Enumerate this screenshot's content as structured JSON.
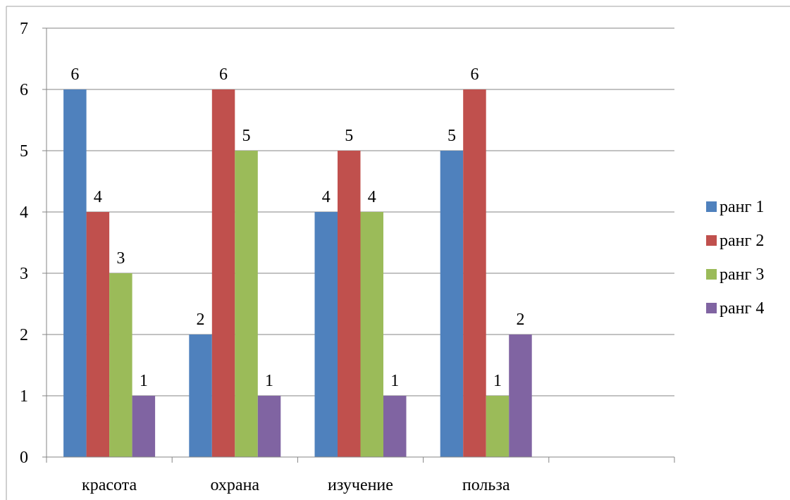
{
  "chart_data": {
    "type": "bar",
    "title": "",
    "xlabel": "",
    "ylabel": "",
    "categories": [
      "красота",
      "охрана",
      "изучение",
      "польза"
    ],
    "series": [
      {
        "name": "ранг 1",
        "values": [
          6,
          2,
          4,
          5
        ],
        "color": "#4F81BD"
      },
      {
        "name": "ранг 2",
        "values": [
          4,
          6,
          5,
          6
        ],
        "color": "#C0504D"
      },
      {
        "name": "ранг 3",
        "values": [
          3,
          5,
          4,
          1
        ],
        "color": "#9BBB59"
      },
      {
        "name": "ранг 4",
        "values": [
          1,
          1,
          1,
          2
        ],
        "color": "#8064A2"
      }
    ],
    "ylim": [
      0,
      7
    ],
    "yticks": [
      "0",
      "1",
      "2",
      "3",
      "4",
      "5",
      "6",
      "7"
    ],
    "grid": true,
    "legend_position": "right",
    "data_labels": true
  }
}
